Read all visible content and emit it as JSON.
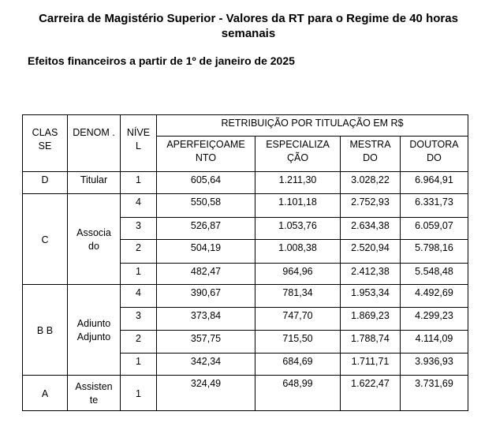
{
  "title": "Carreira de Magistério Superior - Valores da RT para o Regime de 40 horas semanais",
  "subtitle": "Efeitos financeiros a partir de 1º de janeiro de 2025",
  "table": {
    "headers": {
      "classe": "CLAS SE",
      "denom": "DENOM .",
      "nivel": "NÍVE L",
      "group": "RETRIBUIÇÃO POR TITULAÇÃO EM R$",
      "cols": [
        "APERFEIÇOAME NTO",
        "ESPECIALIZA ÇÃO",
        "MESTRA DO",
        "DOUTORA DO"
      ]
    },
    "groups": [
      {
        "classe": "D",
        "denom": "Titular",
        "rows": [
          {
            "nivel": "1",
            "values": [
              "605,64",
              "1.211,30",
              "3.028,22",
              "6.964,91"
            ]
          }
        ]
      },
      {
        "classe": "C",
        "denom": "Associa do",
        "rows": [
          {
            "nivel": "4",
            "values": [
              "550,58",
              "1.101,18",
              "2.752,93",
              "6.331,73"
            ]
          },
          {
            "nivel": "3",
            "values": [
              "526,87",
              "1.053,76",
              "2.634,38",
              "6.059,07"
            ]
          },
          {
            "nivel": "2",
            "values": [
              "504,19",
              "1.008,38",
              "2.520,94",
              "5.798,16"
            ]
          },
          {
            "nivel": "1",
            "values": [
              "482,47",
              "964,96",
              "2.412,38",
              "5.548,48"
            ]
          }
        ]
      },
      {
        "classe": "B B",
        "denom": "Adiunto Adjunto",
        "rows": [
          {
            "nivel": "4",
            "values": [
              "390,67",
              "781,34",
              "1.953,34",
              "4.492,69"
            ]
          },
          {
            "nivel": "3",
            "values": [
              "373,84",
              "747,70",
              "1.869,23",
              "4.299,23"
            ]
          },
          {
            "nivel": "2",
            "values": [
              "357,75",
              "715,50",
              "1.788,74",
              "4.114,09"
            ]
          },
          {
            "nivel": "1",
            "values": [
              "342,34",
              "684,69",
              "1.711,71",
              "3.936,93"
            ]
          }
        ]
      },
      {
        "classe": "A",
        "denom": "Assisten te",
        "rows": [
          {
            "nivel": "1",
            "values": [
              "324,49",
              "648,99",
              "1.622,47",
              "3.731,69"
            ]
          }
        ]
      }
    ]
  }
}
